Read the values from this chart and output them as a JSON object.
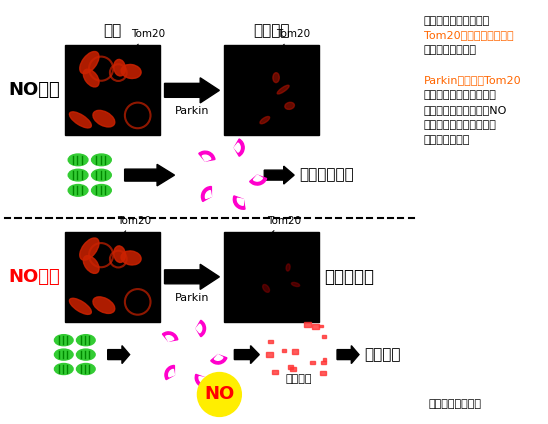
{
  "bg_color": "#ffffff",
  "top_label_normal": "正常",
  "top_label_drug": "薬剤添加",
  "label_no_no": "NOなし",
  "label_no_ari": "NOあり",
  "label_parkin": "Parkin",
  "label_tom20": "Tom20",
  "label_cell_damage": "細胞機能障害",
  "label_cell_protect": "細胞保護",
  "label_degradation": "分解促進！",
  "label_degradation_product": "分解産物",
  "label_NO": "NO",
  "annotation_line1": "写真の赤い蛍光の光は",
  "annotation_line2": "Tom20というタンパク質",
  "annotation_line3": "を示しています。",
  "annotation_line4": "Parkinの働きでTom20",
  "annotation_line5": "は分解され赤いシグナル",
  "annotation_line6": "が減りますが、そこにNO",
  "annotation_line7": "を加えると、分解が大幅",
  "annotation_line8": "に促進します。",
  "university": "（奈良医科大学）",
  "color_green": "#33cc33",
  "color_red": "#ff0000",
  "color_magenta": "#ff00aa",
  "color_yellow": "#ffff00",
  "color_black": "#000000",
  "color_darkred": "#8b0000",
  "color_orange_parkin": "#ff6600",
  "color_annotation_highlight": "#ff6600"
}
